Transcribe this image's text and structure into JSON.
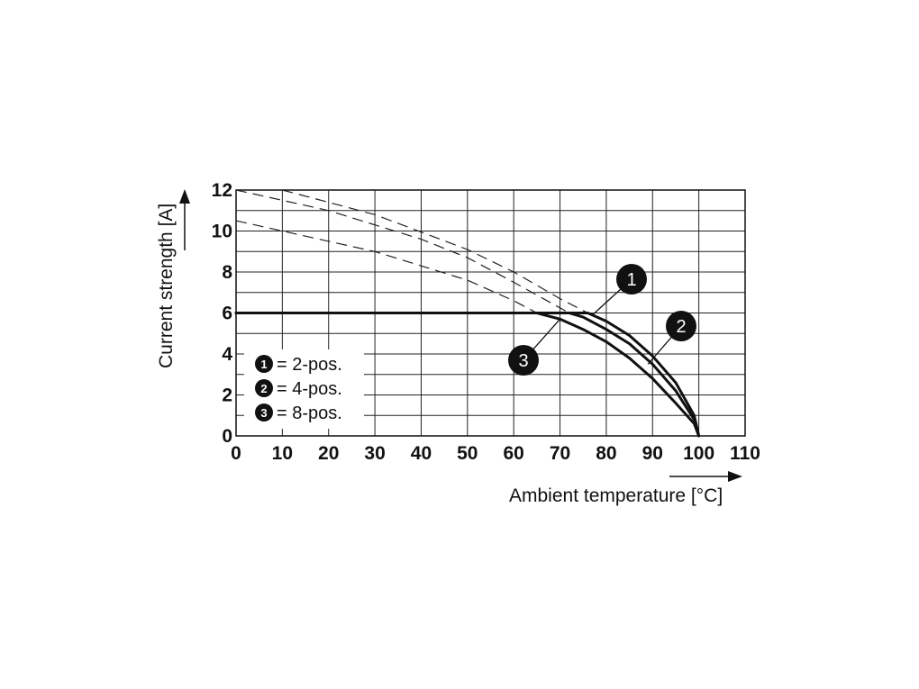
{
  "chart_data": {
    "type": "line",
    "xlabel": "Ambient temperature [°C]",
    "ylabel": "Current strength [A]",
    "xlim": [
      0,
      110
    ],
    "ylim": [
      0,
      12
    ],
    "x_ticks": [
      0,
      10,
      20,
      30,
      40,
      50,
      60,
      70,
      80,
      90,
      100,
      110
    ],
    "y_ticks": [
      0,
      2,
      4,
      6,
      8,
      10,
      12
    ],
    "x_minor_step": 10,
    "y_minor_step": 1,
    "grid": true,
    "legend_position": "bottom-left",
    "derating_cap": 6,
    "series": [
      {
        "name": "2-pos.",
        "badge": "1",
        "solid": [
          [
            0,
            6
          ],
          [
            76,
            6
          ],
          [
            80,
            5.6
          ],
          [
            85,
            4.9
          ],
          [
            90,
            3.9
          ],
          [
            95,
            2.6
          ],
          [
            99,
            1.0
          ],
          [
            100,
            0
          ]
        ],
        "dashed": [
          [
            10,
            12
          ],
          [
            30,
            10.8
          ],
          [
            50,
            9.1
          ],
          [
            60,
            8.0
          ],
          [
            70,
            6.7
          ],
          [
            76,
            6
          ]
        ]
      },
      {
        "name": "4-pos.",
        "badge": "2",
        "solid": [
          [
            0,
            6
          ],
          [
            72,
            6
          ],
          [
            75,
            5.8
          ],
          [
            80,
            5.2
          ],
          [
            85,
            4.5
          ],
          [
            90,
            3.5
          ],
          [
            95,
            2.2
          ],
          [
            99,
            0.8
          ],
          [
            100,
            0
          ]
        ],
        "dashed": [
          [
            0,
            12
          ],
          [
            20,
            11
          ],
          [
            40,
            9.6
          ],
          [
            50,
            8.7
          ],
          [
            60,
            7.5
          ],
          [
            72,
            6
          ]
        ]
      },
      {
        "name": "8-pos.",
        "badge": "3",
        "solid": [
          [
            0,
            6
          ],
          [
            65,
            6
          ],
          [
            70,
            5.7
          ],
          [
            75,
            5.2
          ],
          [
            80,
            4.6
          ],
          [
            85,
            3.8
          ],
          [
            90,
            2.8
          ],
          [
            95,
            1.6
          ],
          [
            99,
            0.6
          ],
          [
            100,
            0
          ]
        ],
        "dashed": [
          [
            0,
            10.5
          ],
          [
            10,
            10.0
          ],
          [
            30,
            9.0
          ],
          [
            50,
            7.6
          ],
          [
            60,
            6.6
          ],
          [
            65,
            6
          ]
        ]
      }
    ],
    "callouts": [
      {
        "badge": "1",
        "point": [
          77,
          5.9
        ]
      },
      {
        "badge": "2",
        "point": [
          89,
          3.5
        ]
      },
      {
        "badge": "3",
        "point": [
          70,
          5.7
        ]
      }
    ],
    "legend": [
      {
        "badge": "1",
        "text": "= 2-pos."
      },
      {
        "badge": "2",
        "text": "= 4-pos."
      },
      {
        "badge": "3",
        "text": "= 8-pos."
      }
    ]
  }
}
